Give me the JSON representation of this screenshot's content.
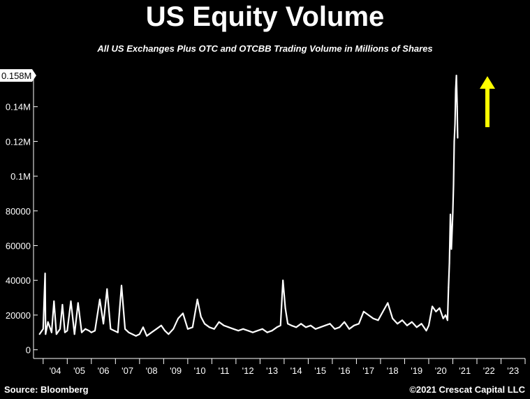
{
  "header": {
    "title": "US Equity Volume",
    "subtitle": "All US Exchanges Plus OTC and OTCBB Trading Volume in Millions of Shares"
  },
  "footer": {
    "source": "Source: Bloomberg",
    "copyright": "©2021 Crescat Capital LLC"
  },
  "colors": {
    "background": "#000000",
    "line": "#ffffff",
    "axis": "#ffffff",
    "arrow": "#ffff00",
    "current_label_bg": "#ffffff"
  },
  "chart_data": {
    "type": "line",
    "title": "US Equity Volume",
    "subtitle": "All US Exchanges Plus OTC and OTCBB Trading Volume in Millions of Shares",
    "xlabel": "",
    "ylabel": "",
    "x_unit": "year",
    "xlim": [
      2003.6,
      2024.0
    ],
    "ylim": [
      -5000,
      160000
    ],
    "x_tick_labels": [
      "'04",
      "'05",
      "'06",
      "'07",
      "'08",
      "'09",
      "'10",
      "'11",
      "'12",
      "'13",
      "'14",
      "'15",
      "'16",
      "'17",
      "'18",
      "'19",
      "'20",
      "'21",
      "'22",
      "'23"
    ],
    "y_ticks": [
      0,
      20000,
      40000,
      60000,
      80000,
      100000,
      120000,
      140000
    ],
    "y_tick_labels": [
      "0",
      "20000",
      "40000",
      "60000",
      "80000",
      "0.1M",
      "0.12M",
      "0.14M"
    ],
    "current_value": 158000,
    "current_value_label": "0.158M",
    "grid": false,
    "annotations": [
      "upward-yellow-arrow"
    ],
    "series": [
      {
        "x": [
          2003.85,
          2004.0,
          2004.08,
          2004.1,
          2004.2,
          2004.35,
          2004.45,
          2004.55,
          2004.7,
          2004.8,
          2004.9,
          2005.0,
          2005.15,
          2005.3,
          2005.45,
          2005.6,
          2005.75,
          2005.9,
          2006.0,
          2006.15,
          2006.35,
          2006.5,
          2006.65,
          2006.8,
          2006.95,
          2007.1,
          2007.25,
          2007.4,
          2007.55,
          2007.7,
          2007.85,
          2008.0,
          2008.15,
          2008.3,
          2008.5,
          2008.7,
          2008.9,
          2009.05,
          2009.2,
          2009.4,
          2009.6,
          2009.8,
          2010.0,
          2010.2,
          2010.4,
          2010.55,
          2010.7,
          2010.9,
          2011.1,
          2011.3,
          2011.5,
          2011.7,
          2011.9,
          2012.1,
          2012.3,
          2012.5,
          2012.7,
          2012.9,
          2013.1,
          2013.3,
          2013.5,
          2013.7,
          2013.85,
          2013.95,
          2014.05,
          2014.15,
          2014.3,
          2014.5,
          2014.7,
          2014.9,
          2015.1,
          2015.3,
          2015.5,
          2015.7,
          2015.9,
          2016.1,
          2016.3,
          2016.5,
          2016.7,
          2016.9,
          2017.1,
          2017.3,
          2017.5,
          2017.7,
          2017.9,
          2018.1,
          2018.3,
          2018.5,
          2018.7,
          2018.9,
          2019.1,
          2019.3,
          2019.5,
          2019.7,
          2019.9,
          2020.0,
          2020.15,
          2020.3,
          2020.45,
          2020.6,
          2020.7,
          2020.78,
          2020.82,
          2020.86,
          2020.9,
          2020.94,
          2020.98,
          2021.0,
          2021.03,
          2021.06,
          2021.09,
          2021.12,
          2021.15,
          2021.18,
          2021.2
        ],
        "values": [
          9000,
          12000,
          44000,
          9000,
          16000,
          10000,
          28000,
          9000,
          12000,
          26000,
          10000,
          11000,
          28000,
          9000,
          27000,
          10000,
          12000,
          11000,
          10000,
          11000,
          29000,
          15000,
          35000,
          12000,
          11000,
          10000,
          37000,
          12000,
          10000,
          9000,
          8000,
          9000,
          13000,
          8000,
          10000,
          12000,
          14000,
          11000,
          9000,
          12000,
          18000,
          21000,
          12000,
          13000,
          29000,
          19000,
          15000,
          13000,
          12000,
          16000,
          14000,
          13000,
          12000,
          11000,
          12000,
          11000,
          10000,
          11000,
          12000,
          10000,
          11000,
          13000,
          14000,
          40000,
          24000,
          15000,
          14000,
          13000,
          15000,
          13000,
          14000,
          12000,
          13000,
          14000,
          15000,
          12000,
          13000,
          16000,
          12000,
          14000,
          15000,
          22000,
          20000,
          18000,
          17000,
          22000,
          27000,
          18000,
          15000,
          17000,
          14000,
          16000,
          13000,
          15000,
          11000,
          14000,
          25000,
          22000,
          24000,
          18000,
          20000,
          17000,
          36000,
          50000,
          78000,
          58000,
          72000,
          80000,
          95000,
          120000,
          130000,
          150000,
          158000,
          140000,
          122000
        ]
      }
    ]
  }
}
